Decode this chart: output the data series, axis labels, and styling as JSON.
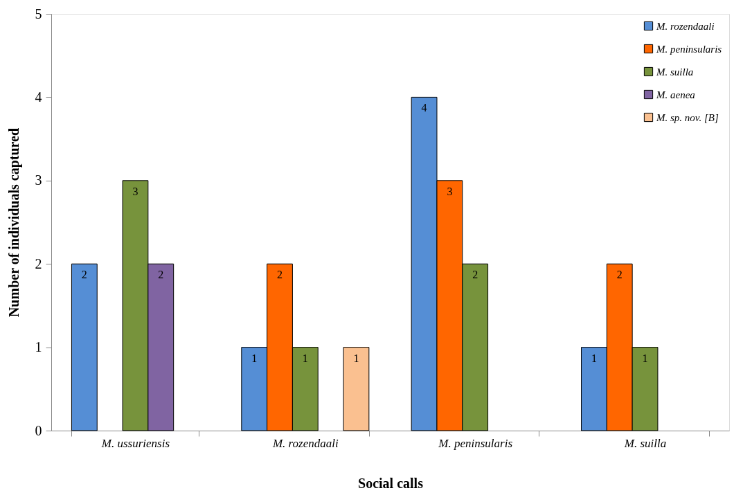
{
  "chart_data": {
    "type": "bar",
    "xlabel": "Social calls",
    "ylabel": "Number of individuals captured",
    "categories": [
      "M. ussuriensis",
      "M. rozendaali",
      "M. peninsularis",
      "M. suilla"
    ],
    "series": [
      {
        "name": "M. rozendaali",
        "color": "#558ed5",
        "values": [
          2,
          1,
          4,
          1
        ]
      },
      {
        "name": "M. peninsularis",
        "color": "#ff6600",
        "values": [
          null,
          2,
          3,
          2
        ]
      },
      {
        "name": "M. suilla",
        "color": "#77933c",
        "values": [
          3,
          1,
          2,
          1
        ]
      },
      {
        "name": "M. aenea",
        "color": "#8064a2",
        "values": [
          2,
          null,
          null,
          null
        ]
      },
      {
        "name": "M. sp. nov. [B]",
        "color": "#fac090",
        "values": [
          null,
          1,
          null,
          null
        ]
      }
    ],
    "ylim": [
      0,
      5
    ],
    "yticks": [
      0,
      1,
      2,
      3,
      4,
      5
    ],
    "legend": "top right",
    "data_labels": true
  }
}
